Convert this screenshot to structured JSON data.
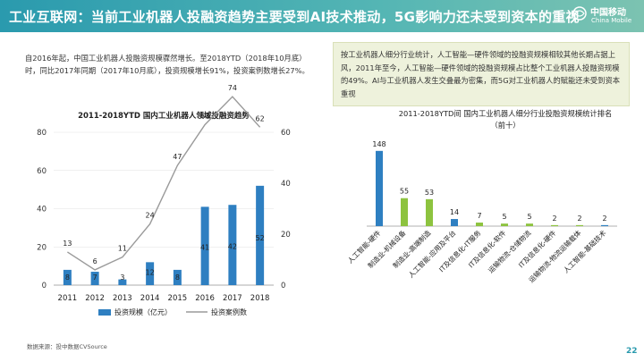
{
  "header": {
    "title": "工业互联网：当前工业机器人投融资趋势主要受到AI技术推动，5G影响力还未受到资本的重视",
    "logo_cn": "中国移动",
    "logo_en": "China Mobile"
  },
  "left_text": "自2016年起，中国工业机器人投融资规模骤然增长。至2018YTD（2018年10月底）时，同比2017年同期（2017年10月底），投资规模增长91%，投资案例数增长27%。",
  "right_text": "按工业机器人细分行业统计，人工智能—硬件领域的投融资规模相较其他长期占据上风，2011年至今，人工智能—硬件领域的投融资规模占比整个工业机器人投融资规模的49%。AI与工业机器人发生交叠最为密集，而5G对工业机器人的赋能还未受到资本重视",
  "footer_source": "数据来源：投中数据CVSource",
  "page_number": "22",
  "colors": {
    "header": "#2a9aae",
    "bar_blue": "#2e7fc1",
    "bar_green": "#8dc33f",
    "line_gray": "#9a9a9a"
  },
  "chart_data": [
    {
      "type": "bar",
      "title": "2011-2018YTD 国内工业机器人领域投融资趋势",
      "categories": [
        "2011",
        "2012",
        "2013",
        "2014",
        "2015",
        "2016",
        "2017",
        "2018"
      ],
      "series": [
        {
          "name": "投资规模（亿元）",
          "type": "bar",
          "axis": "left",
          "values": [
            8,
            7,
            3,
            12,
            8,
            41,
            42,
            52
          ]
        },
        {
          "name": "投资案例数",
          "type": "line",
          "axis": "right",
          "values": [
            13,
            6,
            11,
            24,
            47,
            63,
            74,
            62
          ]
        }
      ],
      "ylim_left": [
        0,
        80
      ],
      "yticks_left": [
        "0",
        "20",
        "40",
        "60",
        "80"
      ],
      "ylim_right": [
        0,
        60
      ],
      "yticks_right": [
        "0",
        "20",
        "40",
        "60"
      ],
      "legend_position": "bottom"
    },
    {
      "type": "bar",
      "title": "2011-2018YTD间 国内工业机器人细分行业投融资规模统计排名",
      "subtitle": "（前十）",
      "categories": [
        "人工智能-硬件",
        "制造业-机械设备",
        "制造业-高端制造",
        "人工智能-应用及平台",
        "IT及信息化-IT服务",
        "IT及信息化-软件",
        "运输物流-仓储物流",
        "IT及信息化-硬件",
        "运输物流-物流运输载体",
        "人工智能-基础技术"
      ],
      "values": [
        148,
        55,
        53,
        14,
        7,
        5,
        5,
        2,
        2,
        2
      ],
      "bar_colors": [
        "#2e7fc1",
        "#8dc33f",
        "#8dc33f",
        "#2e7fc1",
        "#8dc33f",
        "#8dc33f",
        "#8dc33f",
        "#8dc33f",
        "#8dc33f",
        "#2e7fc1"
      ]
    }
  ]
}
